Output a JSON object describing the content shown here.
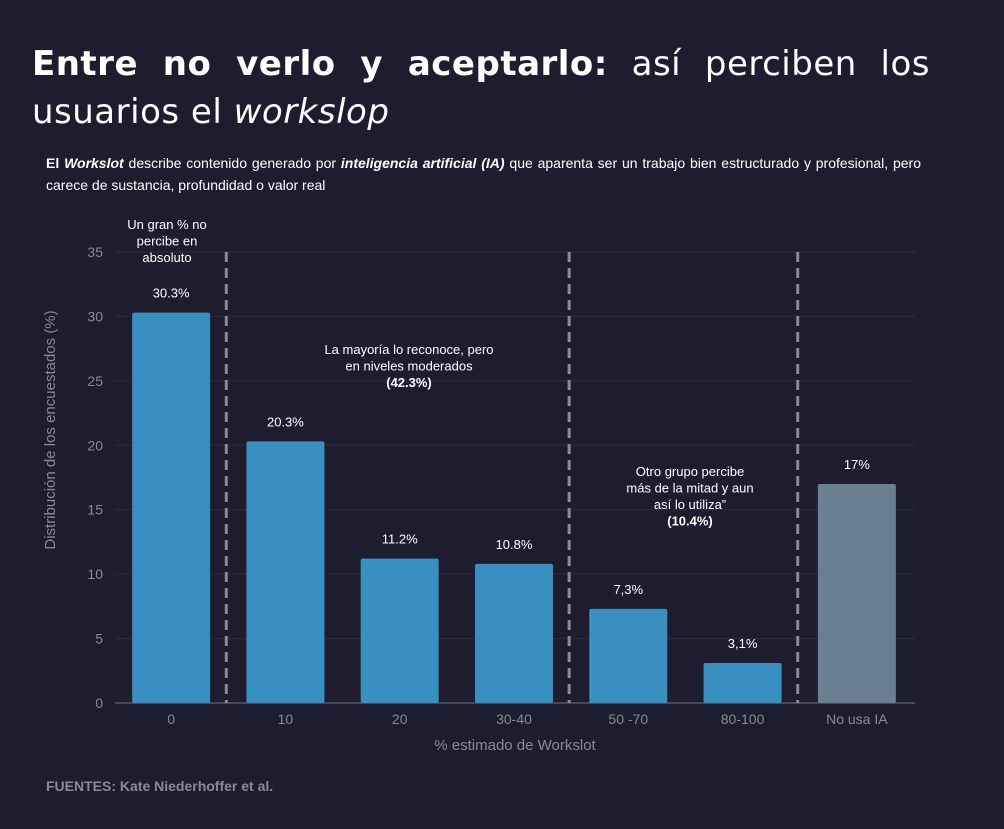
{
  "header": {
    "title_bold": "Entre no verlo y aceptarlo:",
    "title_regular": " así perciben los usuarios el ",
    "title_italic": "workslop",
    "subtitle": {
      "p1": "El ",
      "p2": "Workslot",
      "p3": " describe contenido generado por ",
      "p4": "inteligencia artificial (IA)",
      "p5": " que aparenta ser un trabajo bien estructurado y profesional, pero carece de sustancia, profundidad o valor real"
    }
  },
  "source": "FUENTES: Kate Niederhoffer et al.",
  "colors": {
    "background": "#1e1d2f",
    "bar": "#3a8fc1",
    "bar_no_ia": "#6a8090",
    "divider": "#8a8a94"
  },
  "chart_data": {
    "type": "bar",
    "categories": [
      "0",
      "10",
      "20",
      "30-40",
      "50 -70",
      "80-100",
      "No usa IA"
    ],
    "values": [
      30.3,
      20.3,
      11.2,
      10.8,
      7.3,
      3.1,
      17
    ],
    "data_labels": [
      "30.3%",
      "20.3%",
      "11.2%",
      "10.8%",
      "7,3%",
      "3,1%",
      "17%"
    ],
    "xlabel": "% estimado de Workslot",
    "ylabel": "Distribución de los encuestados (%)",
    "ylim": [
      0,
      35
    ],
    "yticks": [
      0,
      5,
      10,
      15,
      20,
      25,
      30,
      35
    ],
    "grid": true,
    "annotations": [
      {
        "lines": [
          "Un gran % no",
          "percibe en",
          "absoluto"
        ],
        "bold": ""
      },
      {
        "lines": [
          "La mayoría lo reconoce, pero",
          "en niveles moderados"
        ],
        "bold": "(42.3%)"
      },
      {
        "lines": [
          "Otro grupo percibe",
          "más de la mitad y aun",
          "así lo utiliza”"
        ],
        "bold": "(10.4%)"
      }
    ]
  }
}
